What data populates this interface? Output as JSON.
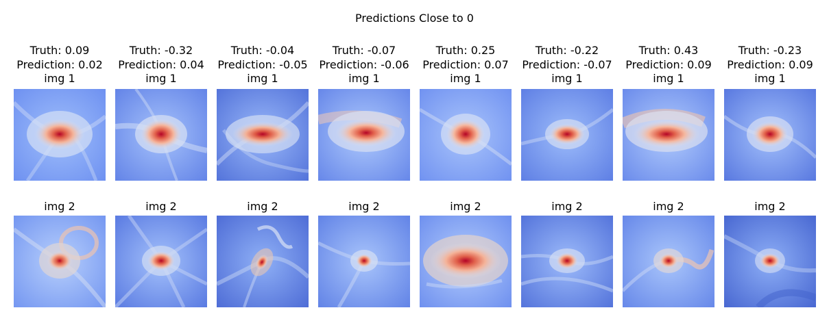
{
  "figure": {
    "title": "Predictions Close to 0"
  },
  "colors": {
    "colormap_low": "#3b4cc0",
    "colormap_mid": "#dddddd",
    "colormap_high": "#b40426"
  },
  "columns": [
    {
      "truth_label": "Truth: 0.09",
      "prediction_label": "Prediction: 0.02",
      "img1_label": "img 1",
      "img2_label": "img 2"
    },
    {
      "truth_label": "Truth: -0.32",
      "prediction_label": "Prediction: 0.04",
      "img1_label": "img 1",
      "img2_label": "img 2"
    },
    {
      "truth_label": "Truth: -0.04",
      "prediction_label": "Prediction: -0.05",
      "img1_label": "img 1",
      "img2_label": "img 2"
    },
    {
      "truth_label": "Truth: -0.07",
      "prediction_label": "Prediction: -0.06",
      "img1_label": "img 1",
      "img2_label": "img 2"
    },
    {
      "truth_label": "Truth: 0.25",
      "prediction_label": "Prediction: 0.07",
      "img1_label": "img 1",
      "img2_label": "img 2"
    },
    {
      "truth_label": "Truth: -0.22",
      "prediction_label": "Prediction: -0.07",
      "img1_label": "img 1",
      "img2_label": "img 2"
    },
    {
      "truth_label": "Truth: 0.43",
      "prediction_label": "Prediction: 0.09",
      "img1_label": "img 1",
      "img2_label": "img 2"
    },
    {
      "truth_label": "Truth: -0.23",
      "prediction_label": "Prediction: 0.09",
      "img1_label": "img 1",
      "img2_label": "img 2"
    }
  ]
}
